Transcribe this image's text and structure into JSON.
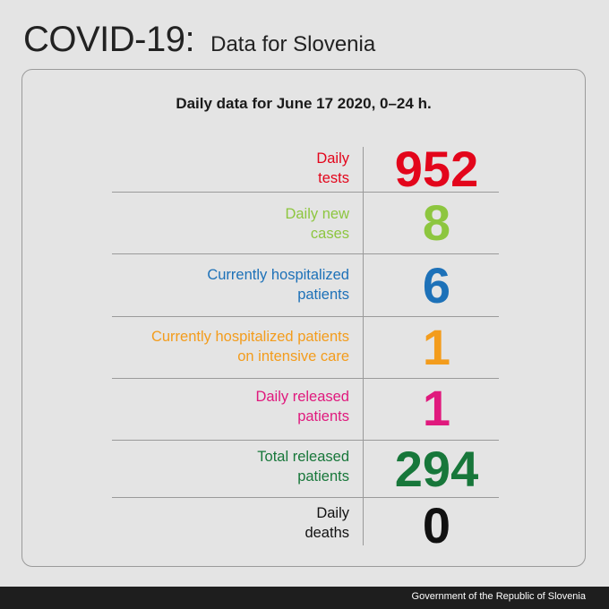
{
  "header": {
    "title": "COVID-19:",
    "subtitle": "Data for Slovenia"
  },
  "card": {
    "heading": "Daily data for June 17 2020, 0–24 h."
  },
  "rows": [
    {
      "label_line1": "Daily",
      "label_line2": "tests",
      "value": "952",
      "color": "#e3051b"
    },
    {
      "label_line1": "Daily new",
      "label_line2": "cases",
      "value": "8",
      "color": "#8dc63f"
    },
    {
      "label_line1": "Currently hospitalized",
      "label_line2": "patients",
      "value": "6",
      "color": "#1d71b8"
    },
    {
      "label_line1": "Currently hospitalized patients",
      "label_line2": "on intensive care",
      "value": "1",
      "color": "#f39c1c"
    },
    {
      "label_line1": "Daily released",
      "label_line2": "patients",
      "value": "1",
      "color": "#e0197d"
    },
    {
      "label_line1": "Total released",
      "label_line2": "patients",
      "value": "294",
      "color": "#17773a"
    },
    {
      "label_line1": "Daily",
      "label_line2": "deaths",
      "value": "0",
      "color": "#111111"
    }
  ],
  "footer": {
    "text": "Government of the Republic of Slovenia"
  }
}
